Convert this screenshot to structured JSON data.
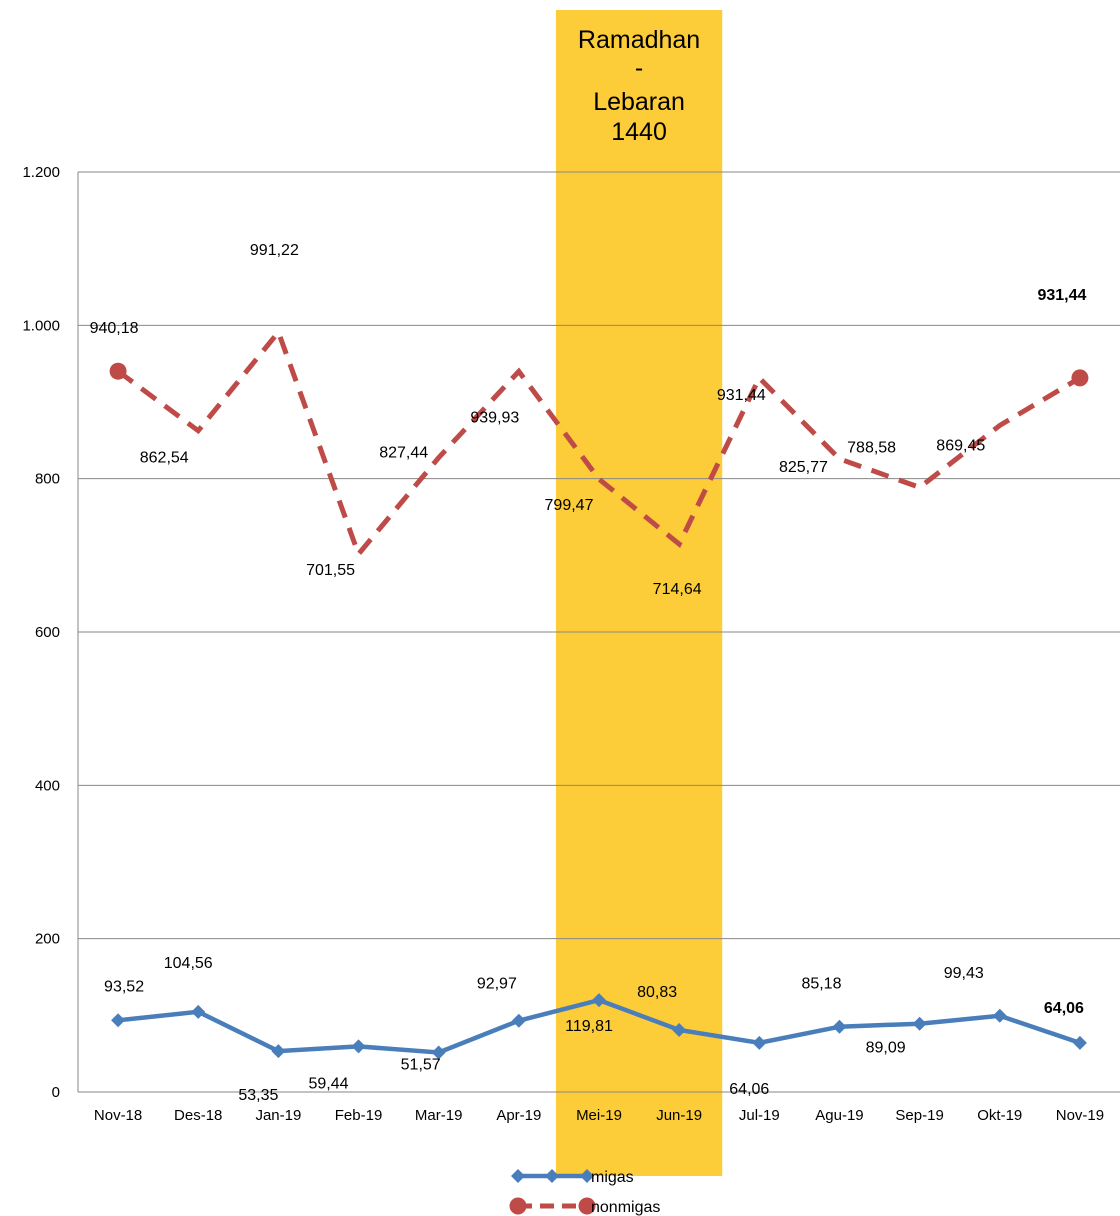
{
  "chart_data": {
    "type": "line",
    "categories": [
      "Nov-18",
      "Des-18",
      "Jan-19",
      "Feb-19",
      "Mar-19",
      "Apr-19",
      "Mei-19",
      "Jun-19",
      "Jul-19",
      "Agu-19",
      "Sep-19",
      "Okt-19",
      "Nov-19"
    ],
    "ylim": [
      0,
      1200
    ],
    "yticks": [
      0,
      200,
      400,
      600,
      800,
      1000,
      1200
    ],
    "ytick_labels": [
      "0",
      "200",
      "400",
      "600",
      "800",
      "1.000",
      "1.200"
    ],
    "grid": true,
    "highlight_band": {
      "categories": [
        "Mei-19",
        "Jun-19"
      ],
      "label_lines": [
        "Ramadhan",
        "-",
        "Lebaran",
        "1440"
      ],
      "color": "#FCCD38"
    },
    "series": [
      {
        "name": "migas",
        "color": "#4A7EBB",
        "style": "solid",
        "marker": "diamond",
        "values": [
          93.52,
          104.56,
          53.35,
          59.44,
          51.57,
          92.97,
          119.81,
          80.83,
          64.06,
          85.18,
          89.09,
          99.43,
          64.06
        ],
        "labels": [
          "93,52",
          "104,56",
          "53,35",
          "59,44",
          "51,57",
          "92,97",
          "119,81",
          "80,83",
          "64,06",
          "85,18",
          "89,09",
          "99,43",
          "64,06"
        ]
      },
      {
        "name": "nonmigas",
        "color": "#BE4B48",
        "style": "dashed",
        "marker": "circle",
        "values": [
          940.18,
          862.54,
          991.22,
          701.55,
          827.44,
          939.93,
          799.47,
          714.64,
          931.44,
          825.77,
          788.58,
          869.45,
          931.44
        ],
        "labels": [
          "940,18",
          "862,54",
          "991,22",
          "701,55",
          "827,44",
          "939,93",
          "799,47",
          "714,64",
          "931,44",
          "825,77",
          "788,58",
          "869,45",
          "931,44"
        ]
      }
    ],
    "legend_position": "bottom"
  }
}
